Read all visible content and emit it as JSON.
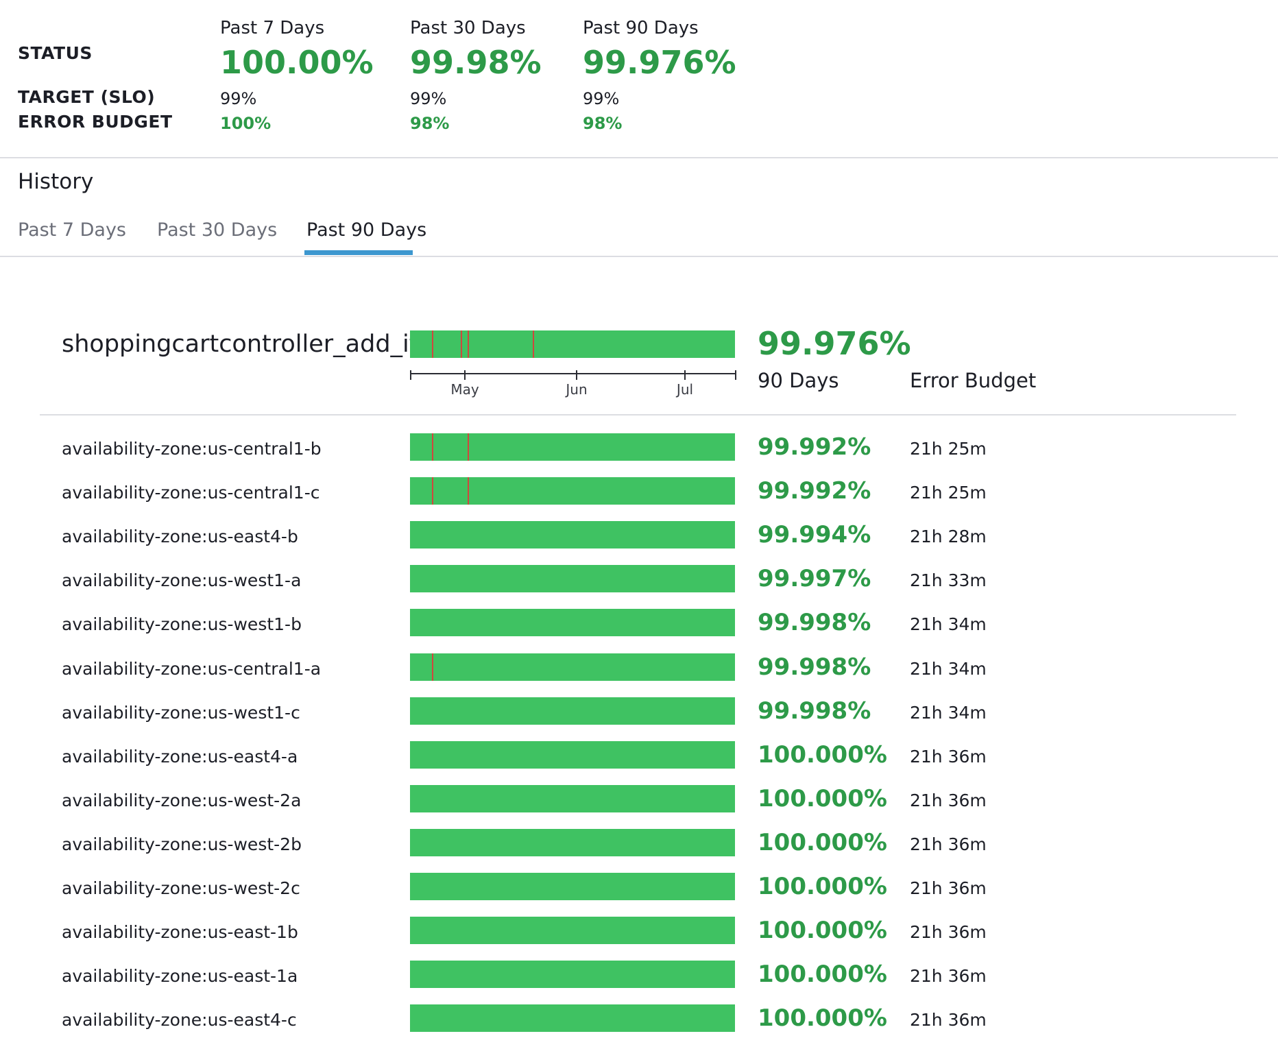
{
  "summary": {
    "labels": {
      "status": "STATUS",
      "target": "TARGET (SLO)",
      "error_budget": "ERROR BUDGET"
    },
    "columns": [
      {
        "period": "Past 7 Days",
        "status": "100.00%",
        "target": "99%",
        "error_budget": "100%"
      },
      {
        "period": "Past 30 Days",
        "status": "99.98%",
        "target": "99%",
        "error_budget": "98%"
      },
      {
        "period": "Past 90 Days",
        "status": "99.976%",
        "target": "99%",
        "error_budget": "98%"
      }
    ]
  },
  "history": {
    "title": "History",
    "tabs": [
      {
        "label": "Past 7 Days",
        "active": false
      },
      {
        "label": "Past 30 Days",
        "active": false
      },
      {
        "label": "Past 90 Days",
        "active": true
      }
    ]
  },
  "colors": {
    "good": "#3fc262",
    "bad": "#d0473d",
    "percent_text": "#2d9a48",
    "tab_accent": "#3d97cf"
  },
  "timeline": {
    "total_days": 90,
    "axis_labels": [
      "May",
      "Jun",
      "Jul"
    ],
    "axis_label_day": [
      15,
      46,
      76
    ]
  },
  "main": {
    "name": "shoppingcartcontroller_add_it",
    "percent": "99.976%",
    "col_90_days": "90 Days",
    "col_error_budget": "Error Budget",
    "incident_days": [
      6,
      14,
      16,
      34
    ]
  },
  "rows": [
    {
      "name": "availability-zone:us-central1-b",
      "percent": "99.992%",
      "error_budget": "21h 25m",
      "incident_days": [
        6,
        16
      ]
    },
    {
      "name": "availability-zone:us-central1-c",
      "percent": "99.992%",
      "error_budget": "21h 25m",
      "incident_days": [
        6,
        16
      ]
    },
    {
      "name": "availability-zone:us-east4-b",
      "percent": "99.994%",
      "error_budget": "21h 28m",
      "incident_days": []
    },
    {
      "name": "availability-zone:us-west1-a",
      "percent": "99.997%",
      "error_budget": "21h 33m",
      "incident_days": []
    },
    {
      "name": "availability-zone:us-west1-b",
      "percent": "99.998%",
      "error_budget": "21h 34m",
      "incident_days": []
    },
    {
      "name": "availability-zone:us-central1-a",
      "percent": "99.998%",
      "error_budget": "21h 34m",
      "incident_days": [
        6
      ]
    },
    {
      "name": "availability-zone:us-west1-c",
      "percent": "99.998%",
      "error_budget": "21h 34m",
      "incident_days": []
    },
    {
      "name": "availability-zone:us-east4-a",
      "percent": "100.000%",
      "error_budget": "21h 36m",
      "incident_days": []
    },
    {
      "name": "availability-zone:us-west-2a",
      "percent": "100.000%",
      "error_budget": "21h 36m",
      "incident_days": []
    },
    {
      "name": "availability-zone:us-west-2b",
      "percent": "100.000%",
      "error_budget": "21h 36m",
      "incident_days": []
    },
    {
      "name": "availability-zone:us-west-2c",
      "percent": "100.000%",
      "error_budget": "21h 36m",
      "incident_days": []
    },
    {
      "name": "availability-zone:us-east-1b",
      "percent": "100.000%",
      "error_budget": "21h 36m",
      "incident_days": []
    },
    {
      "name": "availability-zone:us-east-1a",
      "percent": "100.000%",
      "error_budget": "21h 36m",
      "incident_days": []
    },
    {
      "name": "availability-zone:us-east4-c",
      "percent": "100.000%",
      "error_budget": "21h 36m",
      "incident_days": []
    }
  ]
}
